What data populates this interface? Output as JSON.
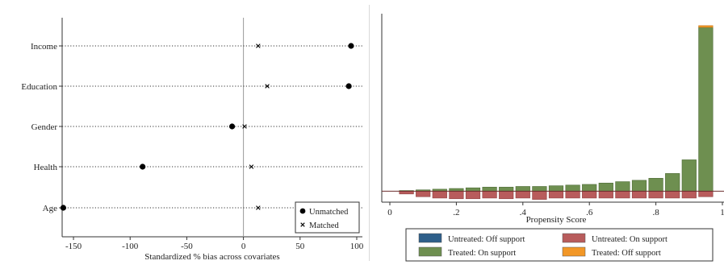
{
  "chart_data": [
    {
      "type": "scatter",
      "title": "",
      "xlabel": "Standardized % bias across covariates",
      "ylabel": "",
      "xlim": [
        -160,
        105
      ],
      "xticks": [
        -150,
        -100,
        -50,
        0,
        50,
        100
      ],
      "xtick_labels": [
        "-150",
        "-100",
        "-50",
        "0",
        "50",
        "100"
      ],
      "categories": [
        "Income",
        "Education",
        "Gender",
        "Health",
        "Age"
      ],
      "series": [
        {
          "name": "Unmatched",
          "marker": "filled-circle",
          "values": [
            95,
            93,
            -10,
            -89,
            -159
          ]
        },
        {
          "name": "Matched",
          "marker": "x",
          "values": [
            13,
            21,
            1,
            7,
            13
          ]
        }
      ],
      "legend_position": "bottom-right",
      "reference_line_x": 0,
      "grid": false
    },
    {
      "type": "bar",
      "title": "",
      "xlabel": "Propensity Score",
      "ylabel": "",
      "xlim": [
        0,
        1
      ],
      "xticks": [
        0,
        0.2,
        0.4,
        0.6,
        0.8,
        1
      ],
      "xtick_labels": [
        "0",
        ".2",
        ".4",
        ".6",
        ".8",
        "1"
      ],
      "bin_width": 0.05,
      "bins": [
        0.05,
        0.1,
        0.15,
        0.2,
        0.25,
        0.3,
        0.35,
        0.4,
        0.45,
        0.5,
        0.55,
        0.6,
        0.65,
        0.7,
        0.75,
        0.8,
        0.85,
        0.9,
        0.95
      ],
      "series": [
        {
          "name": "Treated: On support",
          "color": "#6e8f50",
          "values": [
            0.1,
            0.2,
            0.3,
            0.4,
            0.5,
            0.6,
            0.6,
            0.7,
            0.7,
            0.8,
            0.9,
            1.0,
            1.2,
            1.4,
            1.6,
            1.9,
            2.6,
            4.6,
            24.0
          ]
        },
        {
          "name": "Untreated: On support",
          "color": "#b85c5c",
          "values": [
            -0.4,
            -0.8,
            -1.0,
            -1.1,
            -1.1,
            -1.0,
            -1.1,
            -1.0,
            -1.2,
            -1.0,
            -1.0,
            -1.0,
            -1.0,
            -1.0,
            -1.0,
            -1.0,
            -1.0,
            -1.0,
            -0.8
          ]
        },
        {
          "name": "Treated: Off support",
          "color": "#f29727",
          "values": [
            0,
            0,
            0,
            0,
            0,
            0,
            0,
            0,
            0,
            0,
            0,
            0,
            0,
            0,
            0,
            0,
            0,
            0,
            0.25
          ]
        },
        {
          "name": "Untreated: Off support",
          "color": "#2e5f8a",
          "values": [
            0,
            0,
            0,
            0,
            0,
            0,
            0,
            0,
            0,
            0,
            0,
            0,
            0,
            0,
            0,
            0,
            0,
            0,
            0
          ]
        }
      ],
      "ylim": [
        -1.6,
        26
      ],
      "legend_position": "bottom",
      "grid": false
    }
  ]
}
